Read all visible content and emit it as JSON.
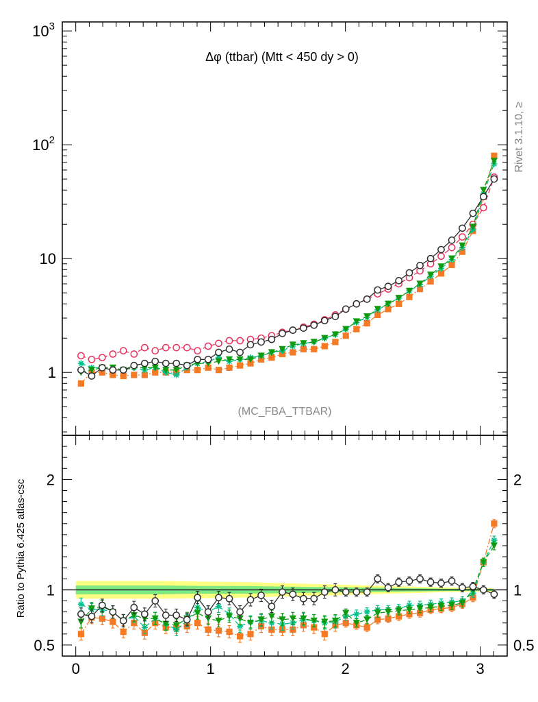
{
  "chart_data": [
    {
      "type": "scatter",
      "title": "Δφ (ttbar) (Mtt < 450 dy > 0)",
      "watermark": "(MC_FBA_TTBAR)",
      "side_label": "Rivet 3.1.10, ≥",
      "log_y": true,
      "xlim": [
        -0.1,
        3.2
      ],
      "ylim": [
        0.28,
        1200
      ],
      "y_ticks": [
        {
          "value": 1,
          "label": "1"
        },
        {
          "value": 10,
          "label": "10"
        },
        {
          "value": 100,
          "label": "10",
          "sup": "2"
        },
        {
          "value": 1000,
          "label": "10",
          "sup": "3"
        }
      ],
      "x": [
        0.039,
        0.118,
        0.196,
        0.275,
        0.353,
        0.432,
        0.511,
        0.589,
        0.668,
        0.746,
        0.825,
        0.903,
        0.982,
        1.06,
        1.139,
        1.218,
        1.296,
        1.375,
        1.453,
        1.532,
        1.61,
        1.689,
        1.767,
        1.846,
        1.925,
        2.003,
        2.082,
        2.16,
        2.239,
        2.317,
        2.396,
        2.474,
        2.553,
        2.632,
        2.71,
        2.789,
        2.867,
        2.946,
        3.024,
        3.103
      ],
      "series": [
        {
          "color": "#e8305a",
          "marker": "open-circle",
          "line": "dashed",
          "values": [
            1.4,
            1.3,
            1.35,
            1.45,
            1.55,
            1.45,
            1.65,
            1.55,
            1.65,
            1.65,
            1.65,
            1.55,
            1.7,
            1.8,
            1.9,
            1.9,
            1.95,
            2.0,
            2.1,
            2.25,
            2.35,
            2.5,
            2.65,
            2.9,
            3.2,
            3.6,
            4.0,
            4.4,
            4.9,
            5.4,
            6.0,
            6.8,
            7.8,
            9.0,
            10.5,
            12.5,
            15.5,
            20.0,
            28.0,
            52.0
          ]
        },
        {
          "color": "#f47a26",
          "marker": "filled-square",
          "line": "dashdot",
          "values": [
            0.8,
            1.0,
            1.0,
            0.95,
            0.93,
            0.95,
            0.95,
            1.0,
            1.0,
            1.0,
            1.05,
            1.05,
            1.1,
            1.05,
            1.1,
            1.15,
            1.2,
            1.3,
            1.35,
            1.45,
            1.5,
            1.6,
            1.6,
            1.7,
            1.85,
            2.1,
            2.4,
            2.7,
            3.2,
            3.6,
            4.0,
            4.6,
            5.4,
            6.3,
            7.4,
            8.8,
            11.5,
            17.5,
            35.0,
            80.0
          ]
        },
        {
          "color": "#00c08c",
          "marker": "star",
          "line": "dashed",
          "values": [
            1.2,
            1.1,
            1.1,
            1.05,
            1.05,
            1.1,
            1.05,
            1.1,
            1.0,
            0.95,
            1.1,
            1.2,
            1.25,
            1.35,
            1.25,
            1.3,
            1.35,
            1.4,
            1.5,
            1.55,
            1.7,
            1.8,
            1.85,
            2.0,
            2.15,
            2.4,
            2.75,
            3.05,
            3.55,
            4.0,
            4.5,
            5.2,
            5.9,
            7.0,
            8.2,
            9.8,
            12.5,
            18.0,
            37.0,
            68.0
          ]
        },
        {
          "color": "#109a10",
          "marker": "filled-triangle-down",
          "line": "dashed",
          "values": [
            1.0,
            1.05,
            1.1,
            1.1,
            1.05,
            1.1,
            1.1,
            1.1,
            1.05,
            1.05,
            1.15,
            1.2,
            1.2,
            1.25,
            1.3,
            1.3,
            1.3,
            1.4,
            1.5,
            1.6,
            1.75,
            1.8,
            1.85,
            2.0,
            2.15,
            2.4,
            2.8,
            3.1,
            3.6,
            4.0,
            4.5,
            5.2,
            6.0,
            7.2,
            8.5,
            10.0,
            13.0,
            19.0,
            40.0,
            72.0
          ]
        },
        {
          "color": "#303030",
          "marker": "open-circle",
          "line": "solid",
          "values": [
            1.05,
            0.93,
            1.1,
            1.05,
            1.05,
            1.15,
            1.2,
            1.25,
            1.2,
            1.2,
            1.15,
            1.3,
            1.3,
            1.5,
            1.6,
            1.5,
            1.75,
            1.85,
            1.95,
            2.2,
            2.35,
            2.45,
            2.6,
            2.85,
            3.1,
            3.6,
            4.0,
            4.4,
            5.3,
            5.7,
            6.4,
            7.5,
            8.7,
            10.0,
            12.0,
            14.5,
            18.5,
            25.0,
            35.0,
            50.0
          ]
        }
      ]
    },
    {
      "type": "scatter",
      "ylabel": "Ratio to Pythia 6.425 atlas-csc",
      "xlim": [
        -0.1,
        3.2
      ],
      "ylim": [
        0.4,
        2.4
      ],
      "x_ticks": [
        "0",
        "1",
        "2",
        "3"
      ],
      "y_ticks": [
        {
          "value": 0.5,
          "label": "0.5"
        },
        {
          "value": 1,
          "label": "1"
        },
        {
          "value": 2,
          "label": "2"
        }
      ],
      "reference_line": 1,
      "band_outer": {
        "color": "#ffff80",
        "half_width": [
          0.08,
          0.08,
          0.08,
          0.075,
          0.07,
          0.06,
          0.05,
          0.04,
          0.03,
          0.02,
          0.015
        ]
      },
      "band_inner": {
        "color": "#80e880",
        "half_width": [
          0.04,
          0.04,
          0.04,
          0.035,
          0.035,
          0.03,
          0.025,
          0.02,
          0.015,
          0.01,
          0.01
        ]
      },
      "series": [
        {
          "color": "#f47a26",
          "marker": "filled-square",
          "line": "dashdot",
          "values": [
            0.6,
            0.75,
            0.74,
            0.71,
            0.62,
            0.7,
            0.61,
            0.7,
            0.66,
            0.66,
            0.67,
            0.7,
            0.64,
            0.63,
            0.62,
            0.58,
            0.6,
            0.67,
            0.64,
            0.64,
            0.64,
            0.68,
            0.66,
            0.6,
            0.68,
            0.7,
            0.68,
            0.66,
            0.73,
            0.74,
            0.76,
            0.78,
            0.79,
            0.82,
            0.83,
            0.84,
            0.87,
            0.93,
            1.25,
            1.6
          ]
        },
        {
          "color": "#00c08c",
          "marker": "star",
          "line": "dashed",
          "values": [
            0.87,
            0.82,
            0.82,
            0.8,
            0.72,
            0.76,
            0.66,
            0.74,
            0.69,
            0.64,
            0.72,
            0.84,
            0.8,
            0.85,
            0.78,
            0.67,
            0.71,
            0.72,
            0.7,
            0.69,
            0.7,
            0.73,
            0.72,
            0.7,
            0.71,
            0.76,
            0.78,
            0.8,
            0.82,
            0.82,
            0.83,
            0.86,
            0.86,
            0.87,
            0.88,
            0.89,
            0.9,
            0.97,
            1.25,
            1.45
          ]
        },
        {
          "color": "#109a10",
          "marker": "filled-triangle-down",
          "line": "dashed",
          "values": [
            0.71,
            0.83,
            0.85,
            0.8,
            0.72,
            0.77,
            0.74,
            0.74,
            0.69,
            0.68,
            0.74,
            0.79,
            0.74,
            0.72,
            0.76,
            0.74,
            0.7,
            0.73,
            0.76,
            0.73,
            0.74,
            0.74,
            0.72,
            0.71,
            0.72,
            0.79,
            0.7,
            0.73,
            0.79,
            0.8,
            0.81,
            0.82,
            0.83,
            0.84,
            0.85,
            0.86,
            0.88,
            1.0,
            1.25,
            1.4
          ]
        },
        {
          "color": "#303030",
          "marker": "open-circle",
          "line": "solid",
          "values": [
            0.78,
            0.76,
            0.86,
            0.8,
            0.72,
            0.84,
            0.78,
            0.9,
            0.77,
            0.77,
            0.73,
            0.93,
            0.8,
            0.93,
            0.92,
            0.8,
            0.91,
            0.95,
            0.85,
            0.98,
            0.96,
            0.92,
            0.92,
            0.98,
            1.0,
            0.98,
            0.98,
            0.98,
            1.1,
            1.02,
            1.07,
            1.08,
            1.1,
            1.07,
            1.06,
            1.08,
            1.02,
            1.03,
            1.0,
            0.96
          ]
        }
      ]
    }
  ]
}
